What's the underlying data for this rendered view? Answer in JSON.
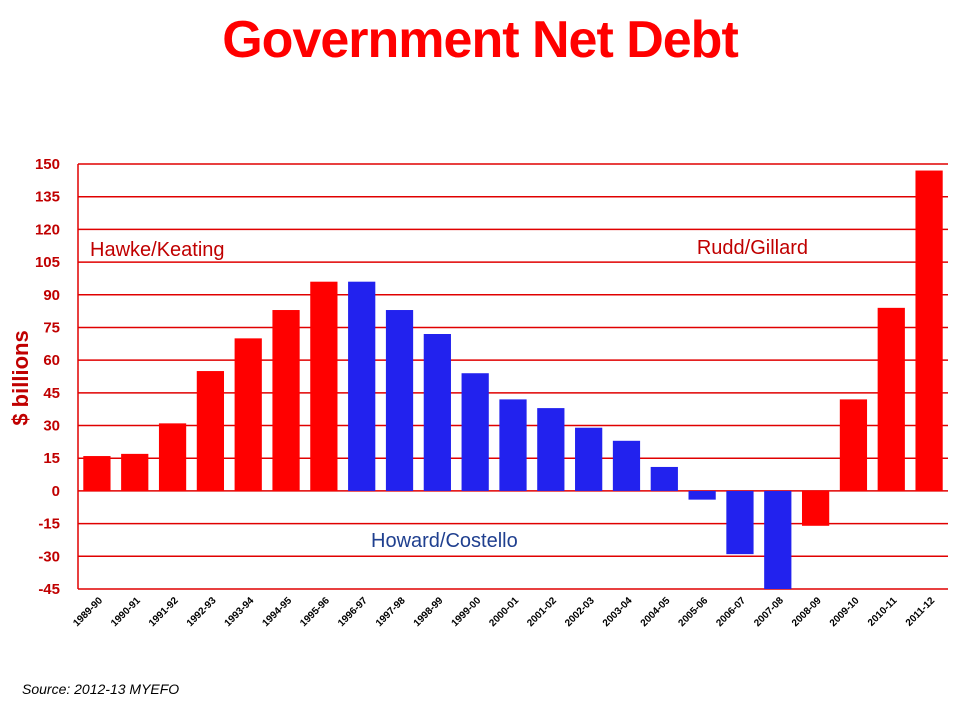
{
  "chart_data": {
    "type": "bar",
    "title": "Government Net Debt",
    "xlabel": "",
    "ylabel": "$ billions",
    "ylim": [
      -45,
      150
    ],
    "yticks": [
      150,
      135,
      120,
      105,
      90,
      75,
      60,
      45,
      30,
      15,
      0,
      -15,
      -30,
      -45
    ],
    "grid": true,
    "categories": [
      "1989-90",
      "1990-91",
      "1991-92",
      "1992-93",
      "1993-94",
      "1994-95",
      "1995-96",
      "1996-97",
      "1997-98",
      "1998-99",
      "1999-00",
      "2000-01",
      "2001-02",
      "2002-03",
      "2003-04",
      "2004-05",
      "2005-06",
      "2006-07",
      "2007-08",
      "2008-09",
      "2009-10",
      "2010-11",
      "2011-12"
    ],
    "values": [
      16,
      17,
      31,
      55,
      70,
      83,
      96,
      96,
      83,
      72,
      54,
      42,
      38,
      29,
      23,
      11,
      -4,
      -29,
      -45,
      -16,
      42,
      84,
      147
    ],
    "bar_colors": [
      "#ff0000",
      "#ff0000",
      "#ff0000",
      "#ff0000",
      "#ff0000",
      "#ff0000",
      "#ff0000",
      "#2222ee",
      "#2222ee",
      "#2222ee",
      "#2222ee",
      "#2222ee",
      "#2222ee",
      "#2222ee",
      "#2222ee",
      "#2222ee",
      "#2222ee",
      "#2222ee",
      "#2222ee",
      "#ff0000",
      "#ff0000",
      "#ff0000",
      "#ff0000"
    ],
    "annotations": [
      {
        "text": "Hawke/Keating",
        "color": "#c00000"
      },
      {
        "text": "Rudd/Gillard",
        "color": "#c00000"
      },
      {
        "text": "Howard/Costello",
        "color": "#1f3f8f"
      }
    ]
  },
  "colors": {
    "title": "#ff0000",
    "grid": "#e00000",
    "axis_text": "#c00000",
    "label": "#c00000",
    "x_tick_text": "#000000"
  },
  "source": "Source:  2012-13 MYEFO"
}
